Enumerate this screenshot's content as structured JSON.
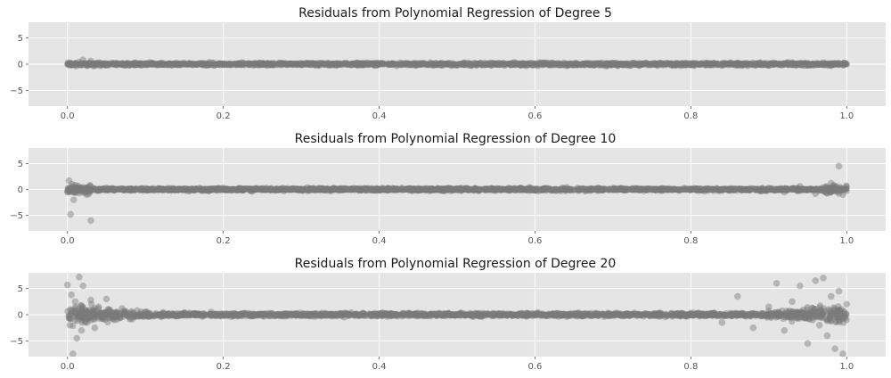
{
  "style": {
    "figure_background": "#ffffff",
    "axes_background": "#e5e5e5",
    "grid_color": "#ffffff",
    "point_color": "#7a7a7a",
    "point_opacity": 0.45,
    "tick_color": "#555555",
    "title_color": "#1a1a1a"
  },
  "chart_data": [
    {
      "type": "scatter",
      "title": "Residuals from Polynomial Regression of Degree 5",
      "xlim": [
        -0.05,
        1.05
      ],
      "ylim": [
        -8,
        8
      ],
      "xticks": [
        0.0,
        0.2,
        0.4,
        0.6,
        0.8,
        1.0
      ],
      "xtick_labels": [
        "0.0",
        "0.2",
        "0.4",
        "0.6",
        "0.8",
        "1.0"
      ],
      "yticks": [
        -5,
        0,
        5
      ],
      "ytick_labels": [
        "−5",
        "0",
        "5"
      ],
      "grid": true,
      "x": [
        0.0,
        0.003,
        0.006,
        0.01,
        0.015,
        0.02,
        0.025,
        0.03,
        0.04,
        0.05,
        0.06,
        0.08,
        0.1,
        0.12,
        0.15,
        0.18,
        0.2,
        0.25,
        0.3,
        0.35,
        0.4,
        0.45,
        0.5,
        0.55,
        0.6,
        0.65,
        0.7,
        0.75,
        0.8,
        0.85,
        0.88,
        0.9,
        0.93,
        0.95,
        0.97,
        0.98,
        0.99,
        0.995,
        1.0
      ],
      "y": [
        0.0,
        0.1,
        -0.1,
        0.2,
        0.4,
        0.8,
        -0.3,
        0.6,
        0.3,
        -0.2,
        0.2,
        -0.1,
        0.1,
        0.0,
        0.1,
        -0.1,
        0.1,
        0.0,
        -0.1,
        0.1,
        0.0,
        0.1,
        -0.1,
        0.1,
        0.0,
        -0.1,
        0.1,
        0.0,
        -0.1,
        0.1,
        0.2,
        -0.2,
        0.3,
        -0.2,
        0.3,
        -0.3,
        0.2,
        0.1,
        0.0
      ]
    },
    {
      "type": "scatter",
      "title": "Residuals from Polynomial Regression of Degree 10",
      "xlim": [
        -0.05,
        1.05
      ],
      "ylim": [
        -8,
        8
      ],
      "xticks": [
        0.0,
        0.2,
        0.4,
        0.6,
        0.8,
        1.0
      ],
      "xtick_labels": [
        "0.0",
        "0.2",
        "0.4",
        "0.6",
        "0.8",
        "1.0"
      ],
      "yticks": [
        -5,
        0,
        5
      ],
      "ytick_labels": [
        "−5",
        "0",
        "5"
      ],
      "grid": true,
      "x": [
        0.0,
        0.002,
        0.004,
        0.006,
        0.008,
        0.01,
        0.015,
        0.02,
        0.025,
        0.03,
        0.05,
        0.08,
        0.1,
        0.15,
        0.2,
        0.3,
        0.4,
        0.5,
        0.6,
        0.7,
        0.8,
        0.85,
        0.9,
        0.92,
        0.94,
        0.96,
        0.98,
        0.99,
        0.995,
        1.0
      ],
      "y": [
        -0.5,
        1.7,
        -4.8,
        1.0,
        -2.0,
        0.8,
        -0.7,
        0.4,
        -1.0,
        -6.0,
        0.3,
        -0.2,
        0.2,
        0.0,
        0.1,
        -0.1,
        0.0,
        0.1,
        -0.1,
        0.0,
        0.1,
        -0.2,
        0.3,
        -0.5,
        0.6,
        -0.8,
        1.2,
        4.5,
        -1.0,
        0.5
      ]
    },
    {
      "type": "scatter",
      "title": "Residuals from Polynomial Regression of Degree 20",
      "xlim": [
        -0.05,
        1.05
      ],
      "ylim": [
        -8,
        8
      ],
      "xticks": [
        0.0,
        0.2,
        0.4,
        0.6,
        0.8,
        1.0
      ],
      "xtick_labels": [
        "0.0",
        "0.2",
        "0.4",
        "0.6",
        "0.8",
        "1.0"
      ],
      "yticks": [
        -5,
        0,
        5
      ],
      "ytick_labels": [
        "−5",
        "0",
        "5"
      ],
      "grid": true,
      "x": [
        0.0,
        0.003,
        0.005,
        0.007,
        0.01,
        0.012,
        0.015,
        0.018,
        0.02,
        0.025,
        0.03,
        0.035,
        0.04,
        0.05,
        0.06,
        0.07,
        0.08,
        0.1,
        0.12,
        0.15,
        0.2,
        0.3,
        0.4,
        0.5,
        0.6,
        0.7,
        0.8,
        0.84,
        0.86,
        0.88,
        0.9,
        0.91,
        0.92,
        0.93,
        0.94,
        0.95,
        0.96,
        0.965,
        0.97,
        0.975,
        0.98,
        0.985,
        0.99,
        0.995,
        1.0
      ],
      "y": [
        5.7,
        -2.0,
        3.8,
        -7.5,
        2.5,
        -4.5,
        7.2,
        -3.0,
        5.5,
        -1.5,
        2.8,
        -2.5,
        1.5,
        3.0,
        -1.0,
        1.2,
        -0.8,
        0.5,
        -0.4,
        0.3,
        0.1,
        -0.1,
        0.1,
        0.0,
        -0.1,
        0.1,
        0.3,
        -1.5,
        3.5,
        -2.5,
        1.5,
        6.0,
        -3.0,
        2.5,
        5.5,
        -5.5,
        6.5,
        -2.0,
        7.0,
        -4.0,
        3.5,
        -6.5,
        4.5,
        -7.5,
        2.0
      ]
    }
  ]
}
